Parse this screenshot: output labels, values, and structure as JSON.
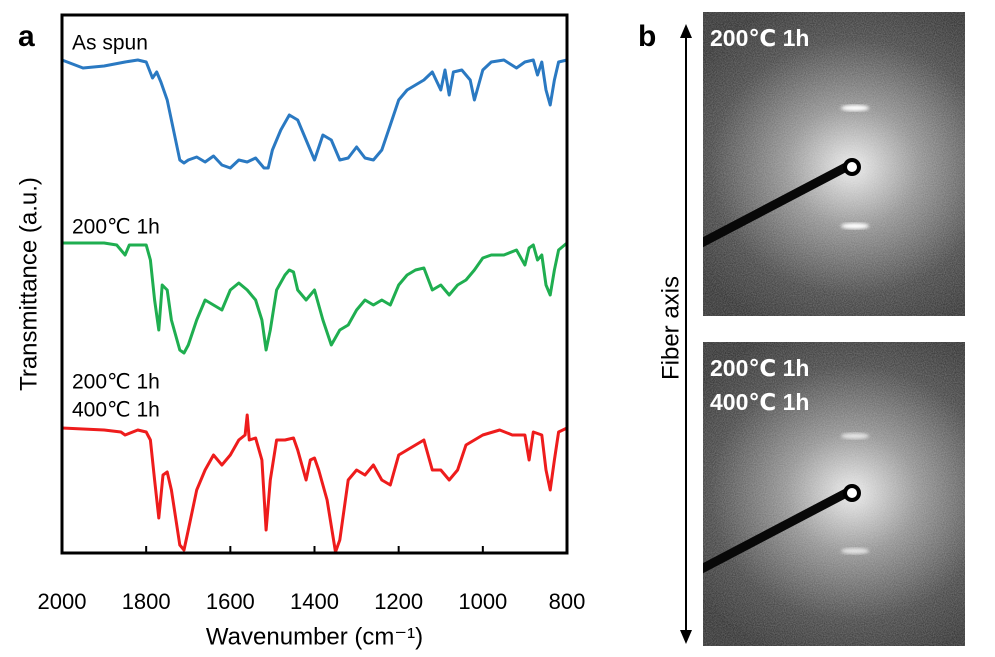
{
  "chart_data": {
    "type": "line",
    "xlabel": "Wavenumber (cm⁻¹)",
    "ylabel": "Transmittance (a.u.)",
    "panel_label": "a",
    "xlim": [
      2000,
      800
    ],
    "xticks": [
      2000,
      1800,
      1600,
      1400,
      1200,
      1000,
      800
    ],
    "ylim": [
      0,
      538
    ],
    "series": [
      {
        "name": [
          "As spun"
        ],
        "color": "#2a79c2",
        "x": [
          2000,
          1950,
          1900,
          1850,
          1820,
          1800,
          1785,
          1775,
          1765,
          1750,
          1735,
          1720,
          1710,
          1700,
          1680,
          1660,
          1640,
          1620,
          1600,
          1580,
          1560,
          1540,
          1520,
          1510,
          1500,
          1480,
          1460,
          1440,
          1420,
          1400,
          1380,
          1360,
          1340,
          1320,
          1300,
          1280,
          1260,
          1240,
          1220,
          1200,
          1180,
          1160,
          1140,
          1120,
          1100,
          1090,
          1080,
          1070,
          1050,
          1030,
          1020,
          1000,
          980,
          950,
          920,
          900,
          880,
          870,
          860,
          850,
          840,
          830,
          820,
          800
        ],
        "values": [
          493,
          485,
          487,
          491,
          493,
          491,
          475,
          481,
          471,
          453,
          423,
          393,
          390,
          393,
          396,
          391,
          397,
          388,
          385,
          393,
          391,
          395,
          385,
          385,
          403,
          423,
          438,
          433,
          413,
          393,
          418,
          413,
          393,
          395,
          406,
          395,
          393,
          403,
          428,
          453,
          463,
          468,
          473,
          481,
          463,
          483,
          458,
          481,
          483,
          473,
          453,
          483,
          491,
          493,
          485,
          491,
          493,
          478,
          491,
          463,
          448,
          473,
          491,
          493
        ]
      },
      {
        "name": [
          "200℃ 1h"
        ],
        "color": "#1fae50",
        "x": [
          2000,
          1900,
          1870,
          1850,
          1840,
          1800,
          1790,
          1780,
          1770,
          1762,
          1750,
          1740,
          1720,
          1710,
          1700,
          1680,
          1660,
          1640,
          1620,
          1600,
          1580,
          1560,
          1540,
          1525,
          1515,
          1505,
          1490,
          1470,
          1460,
          1450,
          1440,
          1420,
          1400,
          1380,
          1360,
          1340,
          1320,
          1300,
          1280,
          1260,
          1240,
          1220,
          1200,
          1180,
          1160,
          1140,
          1120,
          1100,
          1080,
          1060,
          1040,
          1020,
          1000,
          980,
          950,
          920,
          900,
          890,
          880,
          870,
          860,
          850,
          840,
          830,
          820,
          800
        ],
        "values": [
          310,
          310,
          308,
          298,
          308,
          308,
          293,
          253,
          223,
          268,
          263,
          233,
          203,
          200,
          208,
          233,
          253,
          248,
          243,
          263,
          270,
          263,
          253,
          233,
          203,
          223,
          263,
          278,
          283,
          281,
          263,
          253,
          263,
          233,
          208,
          223,
          228,
          243,
          253,
          248,
          253,
          248,
          268,
          278,
          283,
          285,
          263,
          268,
          258,
          268,
          273,
          283,
          295,
          298,
          298,
          303,
          288,
          305,
          308,
          293,
          298,
          268,
          258,
          283,
          303,
          310
        ]
      },
      {
        "name": [
          "200℃ 1h",
          "400℃ 1h"
        ],
        "color": "#ee1c1c",
        "x": [
          2000,
          1900,
          1860,
          1850,
          1820,
          1800,
          1790,
          1780,
          1770,
          1760,
          1750,
          1740,
          1720,
          1710,
          1700,
          1680,
          1660,
          1640,
          1620,
          1600,
          1580,
          1565,
          1560,
          1555,
          1540,
          1525,
          1515,
          1505,
          1490,
          1470,
          1450,
          1440,
          1420,
          1410,
          1400,
          1390,
          1370,
          1350,
          1340,
          1320,
          1300,
          1280,
          1260,
          1240,
          1220,
          1200,
          1180,
          1160,
          1140,
          1120,
          1100,
          1080,
          1060,
          1040,
          1000,
          960,
          930,
          900,
          890,
          880,
          860,
          850,
          840,
          830,
          820,
          800
        ],
        "values": [
          125,
          123,
          121,
          118,
          123,
          121,
          113,
          73,
          35,
          78,
          81,
          63,
          8,
          3,
          23,
          63,
          83,
          98,
          88,
          98,
          113,
          118,
          138,
          113,
          115,
          93,
          23,
          73,
          113,
          113,
          115,
          103,
          73,
          93,
          95,
          83,
          53,
          1,
          13,
          73,
          83,
          78,
          88,
          73,
          68,
          98,
          103,
          108,
          113,
          83,
          83,
          73,
          83,
          108,
          118,
          123,
          118,
          118,
          93,
          121,
          118,
          83,
          63,
          93,
          121,
          125
        ]
      }
    ]
  },
  "panel_b": {
    "panel_label": "b",
    "axis_label": "Fiber axis",
    "images": [
      {
        "lines": [
          "200℃ 1h"
        ]
      },
      {
        "lines": [
          "200℃ 1h",
          "400℃ 1h"
        ]
      }
    ]
  }
}
